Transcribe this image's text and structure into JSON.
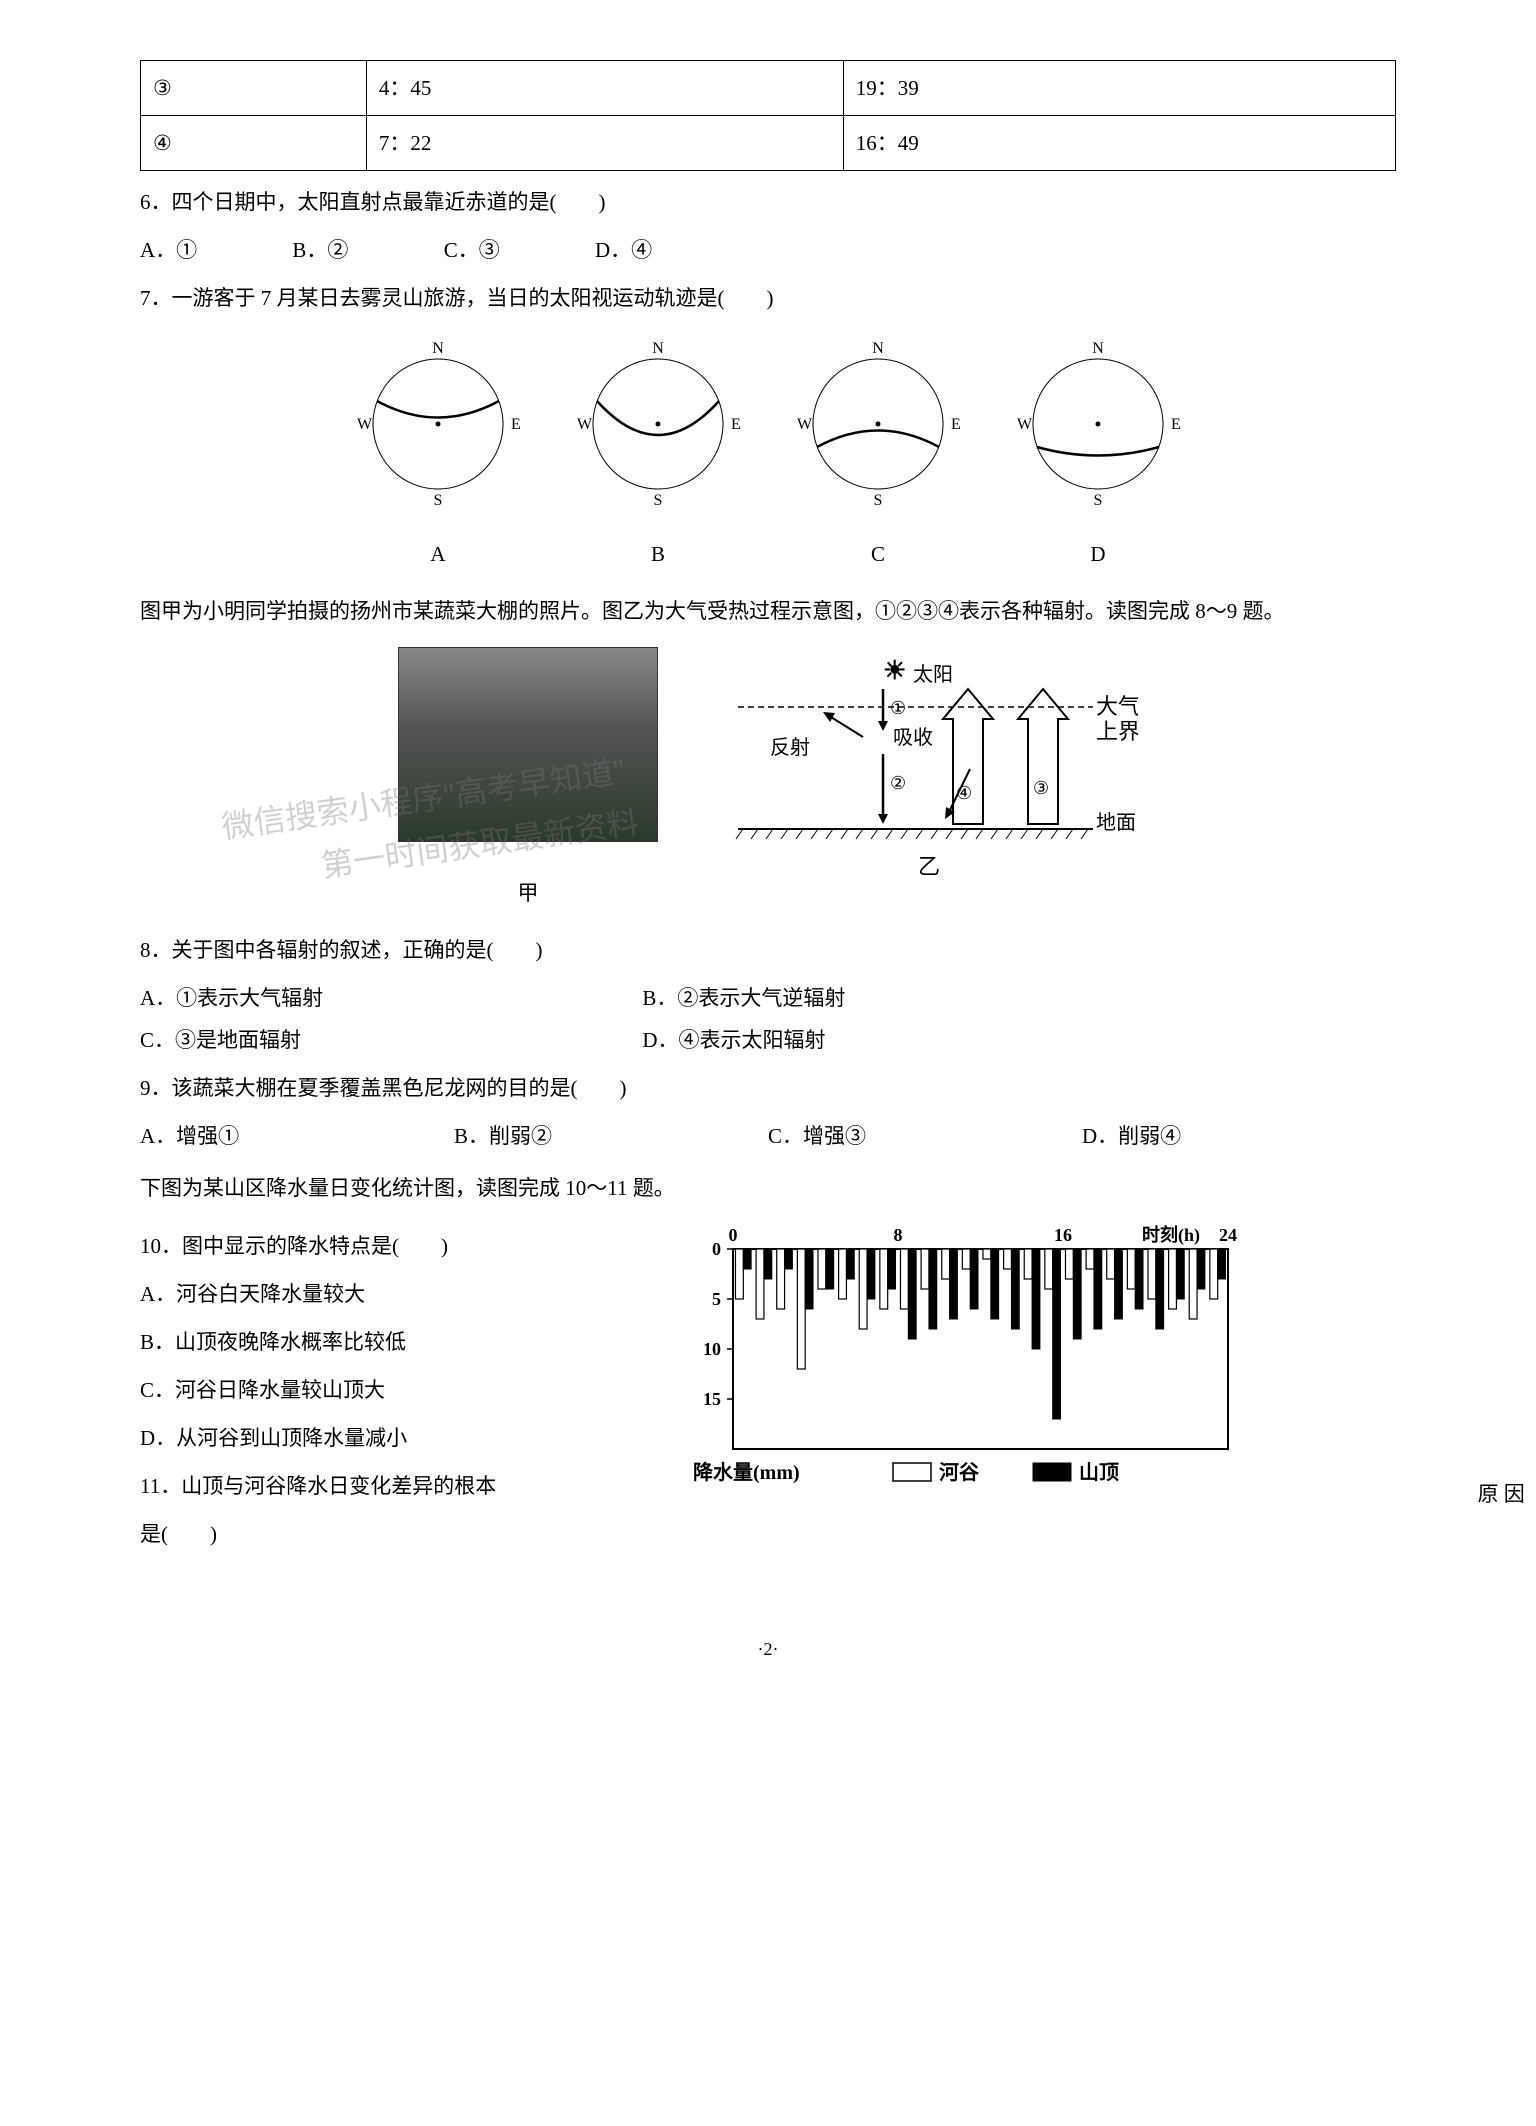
{
  "table": {
    "row1": {
      "c1": "③",
      "c2": "4：45",
      "c3": "19：39"
    },
    "row2": {
      "c1": "④",
      "c2": "7：22",
      "c3": "16：49"
    }
  },
  "q6": {
    "text": "6．四个日期中，太阳直射点最靠近赤道的是(　　)",
    "a": "A．①",
    "b": "B．②",
    "c": "C．③",
    "d": "D．④"
  },
  "q7": {
    "text": "7．一游客于 7 月某日去雾灵山旅游，当日的太阳视运动轨迹是(　　)"
  },
  "circle_labels": {
    "n": "N",
    "s": "S",
    "e": "E",
    "w": "W",
    "a": "A",
    "b": "B",
    "c": "C",
    "d": "D"
  },
  "para1": "图甲为小明同学拍摄的扬州市某蔬菜大棚的照片。图乙为大气受热过程示意图，①②③④表示各种辐射。读图完成 8～9 题。",
  "fig": {
    "jia": "甲",
    "yi": "乙",
    "sun": "太阳",
    "reflect": "反射",
    "absorb": "吸收",
    "atm1": "大气",
    "atm2": "上界",
    "ground": "地面",
    "n1": "①",
    "n2": "②",
    "n3": "③",
    "n4": "④"
  },
  "q8": {
    "text": "8．关于图中各辐射的叙述，正确的是(　　)",
    "a": "A．①表示大气辐射",
    "b": "B．②表示大气逆辐射",
    "c": "C．③是地面辐射",
    "d": "D．④表示太阳辐射"
  },
  "q9": {
    "text": "9．该蔬菜大棚在夏季覆盖黑色尼龙网的目的是(　　)",
    "a": "A．增强①",
    "b": "B．削弱②",
    "c": "C．增强③",
    "d": "D．削弱④"
  },
  "para2": "下图为某山区降水量日变化统计图，读图完成 10～11 题。",
  "q10": {
    "text": "10．图中显示的降水特点是(　　)",
    "a": "A．河谷白天降水量较大",
    "b": "B．山顶夜晚降水概率比较低",
    "c": "C．河谷日降水量较山顶大",
    "d": "D．从河谷到山顶降水量减小"
  },
  "q11": {
    "text": "11．山顶与河谷降水日变化差异的根本",
    "tail": "原 因",
    "last": "是(　　)"
  },
  "chart": {
    "xlabel": "时刻(h)",
    "ylabel": "降水量(mm)",
    "legend1": "河谷",
    "legend2": "山顶",
    "xticks": [
      "0",
      "8",
      "16",
      "24"
    ],
    "yticks": [
      "0",
      "5",
      "10",
      "15"
    ],
    "ylim": [
      0,
      20
    ],
    "background": "#ffffff",
    "border": "#000000",
    "valley_color": "#ffffff",
    "peak_color": "#000000",
    "hours": [
      0,
      1,
      2,
      3,
      4,
      5,
      6,
      7,
      8,
      9,
      10,
      11,
      12,
      13,
      14,
      15,
      16,
      17,
      18,
      19,
      20,
      21,
      22,
      23
    ],
    "valley": [
      5,
      7,
      6,
      12,
      4,
      5,
      8,
      6,
      6,
      4,
      3,
      2,
      1,
      2,
      3,
      4,
      3,
      2,
      3,
      4,
      5,
      6,
      7,
      5
    ],
    "peak": [
      2,
      3,
      2,
      6,
      4,
      3,
      5,
      4,
      9,
      8,
      7,
      6,
      7,
      8,
      10,
      17,
      9,
      8,
      7,
      6,
      8,
      5,
      4,
      3
    ]
  },
  "pagenum": "·2·",
  "watermark": {
    "line1": "微信搜索小程序\"高考早知道\"",
    "line2": "第一时间获取最新资料"
  }
}
